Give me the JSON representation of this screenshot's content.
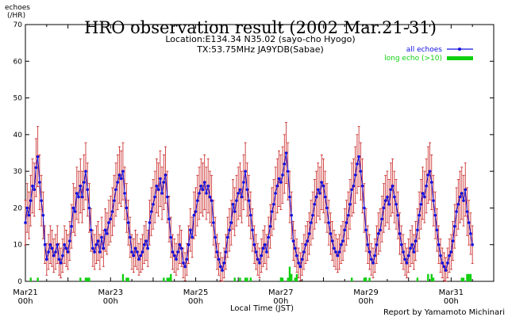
{
  "chart_data": {
    "type": "line",
    "title": "HRO observation result (2002 Mar.21-31)",
    "subtitle_lines": [
      "Location:E134.34 N35.02 (sayo-cho Hyogo)",
      "TX:53.75MHz JA9YDB(Sabae)"
    ],
    "ylabel_lines": [
      "echoes",
      "(/HR)"
    ],
    "xlabel": "Local Time (JST)",
    "credit": "Report by Yamamoto Michinari",
    "ylim": [
      0,
      70
    ],
    "yticks": [
      0,
      10,
      20,
      30,
      40,
      50,
      60,
      70
    ],
    "xlim_hours": [
      0,
      264
    ],
    "xticks": [
      {
        "hour": 0,
        "label": "Mar21",
        "sub": "00h"
      },
      {
        "hour": 48,
        "label": "Mar23",
        "sub": "00h"
      },
      {
        "hour": 96,
        "label": "Mar25",
        "sub": "00h"
      },
      {
        "hour": 144,
        "label": "Mar27",
        "sub": "00h"
      },
      {
        "hour": 192,
        "label": "Mar29",
        "sub": "00h"
      },
      {
        "hour": 240,
        "label": "Mar31",
        "sub": "00h"
      }
    ],
    "legend_position": "top-right",
    "colors": {
      "all_echoes": "#1010e0",
      "error_bars": "#c81e1e",
      "long_echo": "#10d010",
      "axes": "#000000"
    },
    "series": [
      {
        "name": "all echoes",
        "kind": "line-with-errorbars",
        "start_hour": 0,
        "step_hours": 1,
        "values": [
          16,
          20,
          18,
          22,
          26,
          25,
          31,
          34,
          27,
          22,
          18,
          10,
          6,
          8,
          10,
          9,
          7,
          8,
          10,
          6,
          5,
          7,
          10,
          9,
          8,
          11,
          15,
          20,
          19,
          24,
          23,
          26,
          23,
          27,
          30,
          25,
          20,
          14,
          9,
          8,
          10,
          11,
          8,
          12,
          9,
          14,
          13,
          16,
          17,
          19,
          22,
          25,
          27,
          29,
          28,
          30,
          24,
          20,
          16,
          12,
          8,
          7,
          9,
          8,
          6,
          7,
          8,
          10,
          11,
          9,
          16,
          19,
          21,
          23,
          26,
          25,
          28,
          24,
          27,
          29,
          23,
          17,
          12,
          8,
          7,
          6,
          8,
          10,
          9,
          5,
          4,
          6,
          10,
          14,
          12,
          18,
          19,
          22,
          24,
          26,
          25,
          27,
          24,
          26,
          23,
          22,
          16,
          12,
          8,
          6,
          4,
          3,
          5,
          8,
          12,
          14,
          16,
          21,
          19,
          22,
          24,
          25,
          23,
          27,
          30,
          25,
          22,
          18,
          14,
          10,
          8,
          6,
          5,
          7,
          9,
          10,
          8,
          12,
          15,
          19,
          21,
          24,
          26,
          28,
          27,
          29,
          32,
          35,
          30,
          23,
          18,
          11,
          9,
          7,
          5,
          4,
          6,
          8,
          10,
          11,
          13,
          16,
          18,
          21,
          23,
          25,
          24,
          27,
          26,
          23,
          20,
          16,
          13,
          11,
          9,
          8,
          7,
          8,
          10,
          11,
          14,
          16,
          18,
          21,
          25,
          26,
          29,
          32,
          34,
          30,
          26,
          20,
          14,
          10,
          8,
          6,
          5,
          7,
          10,
          13,
          14,
          17,
          20,
          22,
          23,
          21,
          25,
          26,
          23,
          21,
          18,
          13,
          10,
          8,
          6,
          5,
          7,
          9,
          10,
          8,
          11,
          14,
          18,
          21,
          24,
          23,
          26,
          29,
          30,
          27,
          22,
          18,
          14,
          10,
          7,
          5,
          4,
          3,
          5,
          7,
          8,
          11,
          15,
          19,
          21,
          23,
          24,
          22,
          25,
          19,
          16,
          13,
          10
        ]
      },
      {
        "name": "long echo (>10)",
        "kind": "bar",
        "start_hour": 0,
        "step_hours": 1,
        "values": [
          0,
          0,
          0,
          1,
          0,
          0,
          0,
          1,
          0,
          0,
          0,
          0,
          0,
          0,
          0,
          0,
          0,
          0,
          0,
          0,
          0,
          0,
          0,
          0,
          0,
          0,
          0,
          0,
          0,
          0,
          0,
          1,
          0,
          0,
          1,
          1,
          1,
          0,
          0,
          0,
          0,
          0,
          0,
          0,
          0,
          0,
          0,
          0,
          0,
          0,
          0,
          0,
          0,
          0,
          0,
          2,
          0,
          1,
          1,
          0,
          0,
          0,
          0,
          0,
          0,
          0,
          0,
          0,
          0,
          0,
          0,
          0,
          0,
          0,
          0,
          0,
          0,
          0,
          1,
          0,
          1,
          1,
          2,
          0,
          0,
          0,
          0,
          0,
          0,
          0,
          0,
          0,
          0,
          0,
          0,
          0,
          0,
          0,
          0,
          0,
          0,
          0,
          0,
          0,
          0,
          0,
          0,
          0,
          0,
          0,
          0,
          0,
          0,
          0,
          0,
          0,
          0,
          0,
          1,
          0,
          0,
          1,
          0,
          0,
          1,
          1,
          0,
          1,
          0,
          0,
          0,
          0,
          0,
          0,
          0,
          0,
          0,
          0,
          0,
          0,
          0,
          0,
          0,
          0,
          1,
          1,
          0,
          0,
          1,
          4,
          2,
          0,
          1,
          2,
          0,
          0,
          0,
          0,
          0,
          0,
          0,
          0,
          0,
          0,
          0,
          0,
          0,
          0,
          0,
          0,
          0,
          0,
          0,
          0,
          0,
          0,
          0,
          0,
          0,
          0,
          0,
          0,
          0,
          0,
          1,
          0,
          0,
          0,
          0,
          0,
          0,
          1,
          1,
          0,
          1,
          0,
          0,
          0,
          0,
          0,
          0,
          0,
          0,
          0,
          0,
          0,
          0,
          0,
          0,
          0,
          0,
          0,
          0,
          0,
          0,
          0,
          0,
          0,
          0,
          0,
          0,
          1,
          0,
          0,
          0,
          0,
          0,
          2,
          0,
          2,
          1,
          0,
          0,
          0,
          0,
          0,
          0,
          0,
          0,
          0,
          0,
          0,
          0,
          0,
          0,
          0,
          1,
          1,
          0,
          2,
          2,
          2,
          0,
          0,
          0,
          0,
          0,
          0,
          0,
          0,
          0,
          0,
          0,
          0,
          0,
          0
        ]
      }
    ],
    "errorbar_rule": "symmetric, approx sqrt(value)*1.15 + 1.5 echoes/hr"
  }
}
